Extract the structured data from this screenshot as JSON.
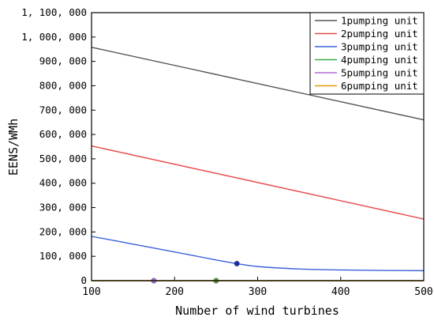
{
  "chart_data": {
    "type": "line",
    "xlabel": "Number of wind turbines",
    "ylabel": "EENS/WMh",
    "xlim": [
      100,
      500
    ],
    "ylim": [
      0,
      1100000
    ],
    "x_ticks": [
      100,
      200,
      300,
      400,
      500
    ],
    "x_tick_labels": [
      "100",
      "200",
      "300",
      "400",
      "500"
    ],
    "y_ticks": [
      0,
      100000,
      200000,
      300000,
      400000,
      500000,
      600000,
      700000,
      800000,
      900000,
      1000000,
      1100000
    ],
    "y_tick_labels": [
      "0",
      "100, 000",
      "200, 000",
      "300, 000",
      "400, 000",
      "500, 000",
      "600, 000",
      "700, 000",
      "800, 000",
      "900, 000",
      "1, 000, 000",
      "1, 100, 000"
    ],
    "grid": false,
    "legend_position": "top-right",
    "series": [
      {
        "name": "1pumping unit",
        "color": "#555555",
        "x": [
          100,
          500
        ],
        "y": [
          958000,
          660000
        ]
      },
      {
        "name": "2pumping unit",
        "color": "#e84a4a",
        "x": [
          100,
          500
        ],
        "y": [
          553000,
          253000
        ]
      },
      {
        "name": "3pumping unit",
        "color": "#3a62d8",
        "x": [
          100,
          150,
          200,
          250,
          275,
          300,
          350,
          400,
          450,
          500
        ],
        "y": [
          182000,
          150000,
          118000,
          85000,
          70000,
          58000,
          48000,
          44000,
          42000,
          41000
        ]
      },
      {
        "name": "4pumping unit",
        "color": "#3aaa4a",
        "x": [
          100,
          500
        ],
        "y": [
          0,
          0
        ]
      },
      {
        "name": "5pumping unit",
        "color": "#b06ad8",
        "x": [
          100,
          500
        ],
        "y": [
          0,
          0
        ]
      },
      {
        "name": "6pumping unit",
        "color": "#e0a000",
        "x": [
          100,
          500
        ],
        "y": [
          0,
          0
        ]
      }
    ],
    "markers": [
      {
        "x": 275,
        "y": 70000,
        "color": "#1a2fa8"
      },
      {
        "x": 175,
        "y": 0,
        "color": "#b06ad8"
      },
      {
        "x": 250,
        "y": 0,
        "color": "#5aa030"
      }
    ]
  }
}
